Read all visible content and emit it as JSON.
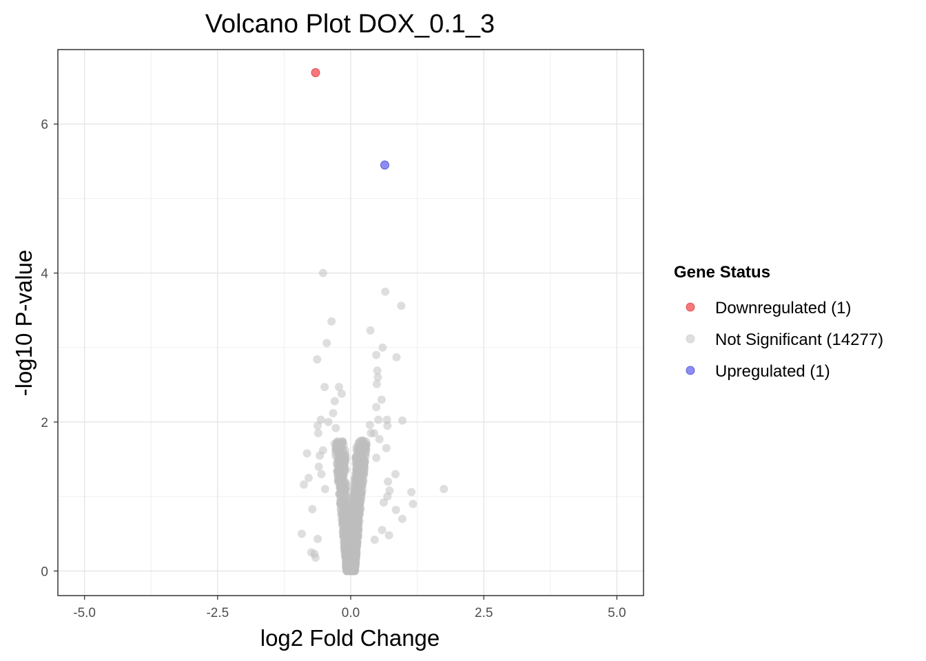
{
  "chart_data": {
    "type": "scatter",
    "title": "Volcano Plot DOX_0.1_3",
    "xlabel": "log2 Fold Change",
    "ylabel": "-log10 P-value",
    "xlim": [
      -5.5,
      5.5
    ],
    "ylim": [
      -0.33,
      7.0
    ],
    "x_ticks": [
      -5,
      -2.5,
      0,
      2.5,
      5
    ],
    "x_tick_labels": [
      "-5.0",
      "-2.5",
      "0.0",
      "2.5",
      "5.0"
    ],
    "y_ticks": [
      0,
      2,
      4,
      6
    ],
    "y_tick_labels": [
      "0",
      "2",
      "4",
      "6"
    ],
    "grid": true,
    "legend": {
      "title": "Gene Status",
      "placement": "right",
      "entries": [
        {
          "label": "Downregulated (1)",
          "color": "#f8777a"
        },
        {
          "label": "Not Significant (14277)",
          "color": "#dedede"
        },
        {
          "label": "Upregulated (1)",
          "color": "#8c8cf5"
        }
      ]
    },
    "series": [
      {
        "name": "Downregulated (1)",
        "color": "#f8777a",
        "stroke": "#d43c3c",
        "points": [
          [
            -0.66,
            6.69
          ]
        ]
      },
      {
        "name": "Upregulated (1)",
        "color": "#8c8cf5",
        "stroke": "#4848c8",
        "points": [
          [
            0.64,
            5.45
          ]
        ]
      },
      {
        "name": "Not Significant (14277)",
        "color": "#bebebe",
        "stroke": "none",
        "points": [
          [
            -0.52,
            4.0
          ],
          [
            -0.36,
            3.35
          ],
          [
            -0.45,
            3.06
          ],
          [
            -0.63,
            2.84
          ],
          [
            -0.49,
            2.47
          ],
          [
            -0.22,
            2.47
          ],
          [
            -0.17,
            2.38
          ],
          [
            -0.3,
            2.28
          ],
          [
            -0.56,
            2.03
          ],
          [
            -0.42,
            2.0
          ],
          [
            -0.62,
            1.95
          ],
          [
            -0.61,
            1.85
          ],
          [
            -0.82,
            1.58
          ],
          [
            -0.52,
            1.62
          ],
          [
            -0.58,
            1.55
          ],
          [
            -0.79,
            1.25
          ],
          [
            -0.88,
            1.16
          ],
          [
            -0.72,
            0.83
          ],
          [
            -0.92,
            0.5
          ],
          [
            -0.74,
            0.25
          ],
          [
            -0.68,
            0.23
          ],
          [
            -0.66,
            0.18
          ],
          [
            -0.62,
            0.43
          ],
          [
            -0.6,
            1.4
          ],
          [
            -0.55,
            1.3
          ],
          [
            -0.48,
            1.1
          ],
          [
            -0.25,
            1.72
          ],
          [
            -0.2,
            1.65
          ],
          [
            -0.28,
            1.92
          ],
          [
            -0.33,
            2.12
          ],
          [
            0.65,
            3.75
          ],
          [
            0.95,
            3.56
          ],
          [
            0.37,
            3.23
          ],
          [
            0.6,
            3.0
          ],
          [
            0.48,
            2.9
          ],
          [
            0.86,
            2.87
          ],
          [
            0.5,
            2.69
          ],
          [
            0.51,
            2.6
          ],
          [
            0.49,
            2.51
          ],
          [
            0.58,
            2.3
          ],
          [
            0.48,
            2.2
          ],
          [
            0.52,
            2.03
          ],
          [
            0.68,
            2.03
          ],
          [
            0.97,
            2.02
          ],
          [
            0.36,
            1.96
          ],
          [
            0.38,
            1.85
          ],
          [
            0.69,
            1.95
          ],
          [
            0.44,
            1.85
          ],
          [
            0.54,
            1.77
          ],
          [
            0.22,
            1.75
          ],
          [
            0.67,
            1.65
          ],
          [
            0.48,
            1.52
          ],
          [
            0.84,
            1.3
          ],
          [
            0.7,
            1.2
          ],
          [
            0.73,
            1.08
          ],
          [
            0.69,
            1.0
          ],
          [
            0.62,
            0.92
          ],
          [
            0.85,
            0.82
          ],
          [
            1.14,
            1.06
          ],
          [
            1.75,
            1.1
          ],
          [
            1.17,
            0.9
          ],
          [
            0.97,
            0.7
          ],
          [
            0.59,
            0.55
          ],
          [
            0.72,
            0.48
          ],
          [
            0.45,
            0.42
          ]
        ]
      }
    ]
  }
}
